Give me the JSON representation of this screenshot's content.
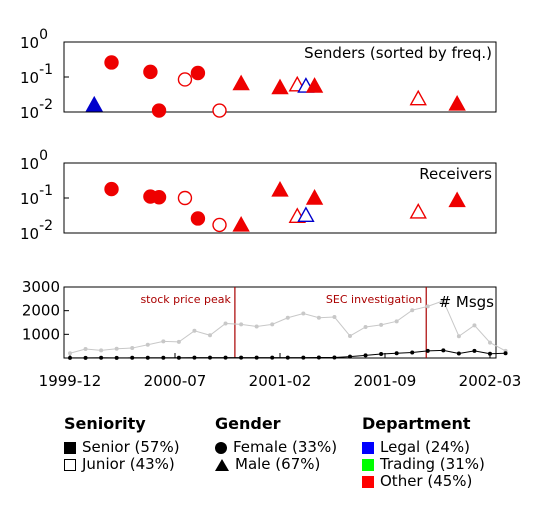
{
  "chart_data": [
    {
      "type": "scatter",
      "title": "Senders (sorted by freq.)",
      "ylabel": "",
      "yscale": "log",
      "ylim": [
        0.01,
        1
      ],
      "yticks": [
        {
          "value": 1,
          "base": "10",
          "exp": "0"
        },
        {
          "value": 0.1,
          "base": "10",
          "exp": "-1"
        },
        {
          "value": 0.01,
          "base": "10",
          "exp": "-2"
        }
      ],
      "xlim": [
        0,
        1
      ],
      "points": [
        {
          "x": 0.07,
          "y": 0.016,
          "shape": "triangle",
          "fill": true,
          "color": "#0000cc"
        },
        {
          "x": 0.11,
          "y": 0.26,
          "shape": "circle",
          "fill": true,
          "color": "#ee0000"
        },
        {
          "x": 0.2,
          "y": 0.14,
          "shape": "circle",
          "fill": true,
          "color": "#ee0000"
        },
        {
          "x": 0.22,
          "y": 0.011,
          "shape": "circle",
          "fill": true,
          "color": "#ee0000"
        },
        {
          "x": 0.28,
          "y": 0.085,
          "shape": "circle",
          "fill": false,
          "color": "#ee0000"
        },
        {
          "x": 0.31,
          "y": 0.13,
          "shape": "circle",
          "fill": true,
          "color": "#ee0000"
        },
        {
          "x": 0.36,
          "y": 0.011,
          "shape": "circle",
          "fill": false,
          "color": "#ee0000"
        },
        {
          "x": 0.41,
          "y": 0.065,
          "shape": "triangle",
          "fill": true,
          "color": "#ee0000"
        },
        {
          "x": 0.5,
          "y": 0.05,
          "shape": "triangle",
          "fill": true,
          "color": "#ee0000"
        },
        {
          "x": 0.54,
          "y": 0.06,
          "shape": "triangle",
          "fill": false,
          "color": "#ee0000"
        },
        {
          "x": 0.56,
          "y": 0.055,
          "shape": "triangle",
          "fill": false,
          "color": "#0000cc"
        },
        {
          "x": 0.58,
          "y": 0.055,
          "shape": "triangle",
          "fill": true,
          "color": "#ee0000"
        },
        {
          "x": 0.82,
          "y": 0.024,
          "shape": "triangle",
          "fill": false,
          "color": "#ee0000"
        },
        {
          "x": 0.91,
          "y": 0.017,
          "shape": "triangle",
          "fill": true,
          "color": "#ee0000"
        }
      ]
    },
    {
      "type": "scatter",
      "title": "Receivers",
      "ylabel": "",
      "yscale": "log",
      "ylim": [
        0.01,
        1
      ],
      "yticks": [
        {
          "value": 1,
          "base": "10",
          "exp": "0"
        },
        {
          "value": 0.1,
          "base": "10",
          "exp": "-1"
        },
        {
          "value": 0.01,
          "base": "10",
          "exp": "-2"
        }
      ],
      "xlim": [
        0,
        1
      ],
      "points": [
        {
          "x": 0.11,
          "y": 0.18,
          "shape": "circle",
          "fill": true,
          "color": "#ee0000"
        },
        {
          "x": 0.2,
          "y": 0.11,
          "shape": "circle",
          "fill": true,
          "color": "#ee0000"
        },
        {
          "x": 0.22,
          "y": 0.105,
          "shape": "circle",
          "fill": true,
          "color": "#ee0000"
        },
        {
          "x": 0.28,
          "y": 0.1,
          "shape": "circle",
          "fill": false,
          "color": "#ee0000"
        },
        {
          "x": 0.31,
          "y": 0.026,
          "shape": "circle",
          "fill": true,
          "color": "#ee0000"
        },
        {
          "x": 0.36,
          "y": 0.017,
          "shape": "circle",
          "fill": false,
          "color": "#ee0000"
        },
        {
          "x": 0.41,
          "y": 0.017,
          "shape": "triangle",
          "fill": true,
          "color": "#ee0000"
        },
        {
          "x": 0.5,
          "y": 0.17,
          "shape": "triangle",
          "fill": true,
          "color": "#ee0000"
        },
        {
          "x": 0.54,
          "y": 0.03,
          "shape": "triangle",
          "fill": false,
          "color": "#ee0000"
        },
        {
          "x": 0.56,
          "y": 0.032,
          "shape": "triangle",
          "fill": false,
          "color": "#0000cc"
        },
        {
          "x": 0.58,
          "y": 0.1,
          "shape": "triangle",
          "fill": true,
          "color": "#ee0000"
        },
        {
          "x": 0.82,
          "y": 0.04,
          "shape": "triangle",
          "fill": false,
          "color": "#ee0000"
        },
        {
          "x": 0.91,
          "y": 0.085,
          "shape": "triangle",
          "fill": true,
          "color": "#ee0000"
        }
      ]
    },
    {
      "type": "line",
      "title": "# Msgs",
      "ylim": [
        0,
        3000
      ],
      "yticks": [
        "1000",
        "2000",
        "3000"
      ],
      "xtick_labels": [
        "1999-12",
        "2000-07",
        "2001-02",
        "2001-09",
        "2002-03"
      ],
      "xlim": [
        0,
        27
      ],
      "annotations": [
        {
          "x": 10.6,
          "label": "stock price peak",
          "color": "#aa0000"
        },
        {
          "x": 22.9,
          "label": "SEC investigation",
          "color": "#aa0000"
        }
      ],
      "series": [
        {
          "style": "gray",
          "color": "#c8c8c8",
          "points": [
            [
              0,
              200
            ],
            [
              1,
              380
            ],
            [
              2,
              320
            ],
            [
              3,
              390
            ],
            [
              4,
              420
            ],
            [
              5,
              560
            ],
            [
              6,
              700
            ],
            [
              7,
              680
            ],
            [
              8,
              1150
            ],
            [
              9,
              960
            ],
            [
              10,
              1460
            ],
            [
              11,
              1420
            ],
            [
              12,
              1330
            ],
            [
              13,
              1420
            ],
            [
              14,
              1700
            ],
            [
              15,
              1880
            ],
            [
              16,
              1700
            ],
            [
              17,
              1730
            ],
            [
              18,
              930
            ],
            [
              19,
              1310
            ],
            [
              20,
              1400
            ],
            [
              21,
              1550
            ],
            [
              22,
              2020
            ],
            [
              23,
              2180
            ],
            [
              24,
              2420
            ],
            [
              25,
              920
            ],
            [
              26,
              1380
            ],
            [
              27,
              650
            ],
            [
              28,
              300
            ]
          ]
        },
        {
          "style": "black",
          "color": "#000000",
          "points": [
            [
              0,
              5
            ],
            [
              1,
              5
            ],
            [
              2,
              8
            ],
            [
              3,
              5
            ],
            [
              4,
              8
            ],
            [
              5,
              10
            ],
            [
              6,
              10
            ],
            [
              7,
              12
            ],
            [
              8,
              14
            ],
            [
              9,
              14
            ],
            [
              10,
              16
            ],
            [
              11,
              16
            ],
            [
              12,
              16
            ],
            [
              13,
              16
            ],
            [
              14,
              18
            ],
            [
              15,
              18
            ],
            [
              16,
              20
            ],
            [
              17,
              22
            ],
            [
              18,
              60
            ],
            [
              19,
              110
            ],
            [
              20,
              170
            ],
            [
              21,
              200
            ],
            [
              22,
              230
            ],
            [
              23,
              300
            ],
            [
              24,
              320
            ],
            [
              25,
              190
            ],
            [
              26,
              300
            ],
            [
              27,
              180
            ],
            [
              28,
              200
            ]
          ]
        }
      ]
    }
  ],
  "legend": {
    "seniority": {
      "title": "Seniority",
      "items": [
        "Senior (57%)",
        "Junior (43%)"
      ]
    },
    "gender": {
      "title": "Gender",
      "items": [
        "Female (33%)",
        "Male (67%)"
      ]
    },
    "department": {
      "title": "Department",
      "items": [
        {
          "label": "Legal (24%)",
          "color": "#0000ff"
        },
        {
          "label": "Trading (31%)",
          "color": "#00ff00"
        },
        {
          "label": "Other (45%)",
          "color": "#ff0000"
        }
      ]
    }
  }
}
